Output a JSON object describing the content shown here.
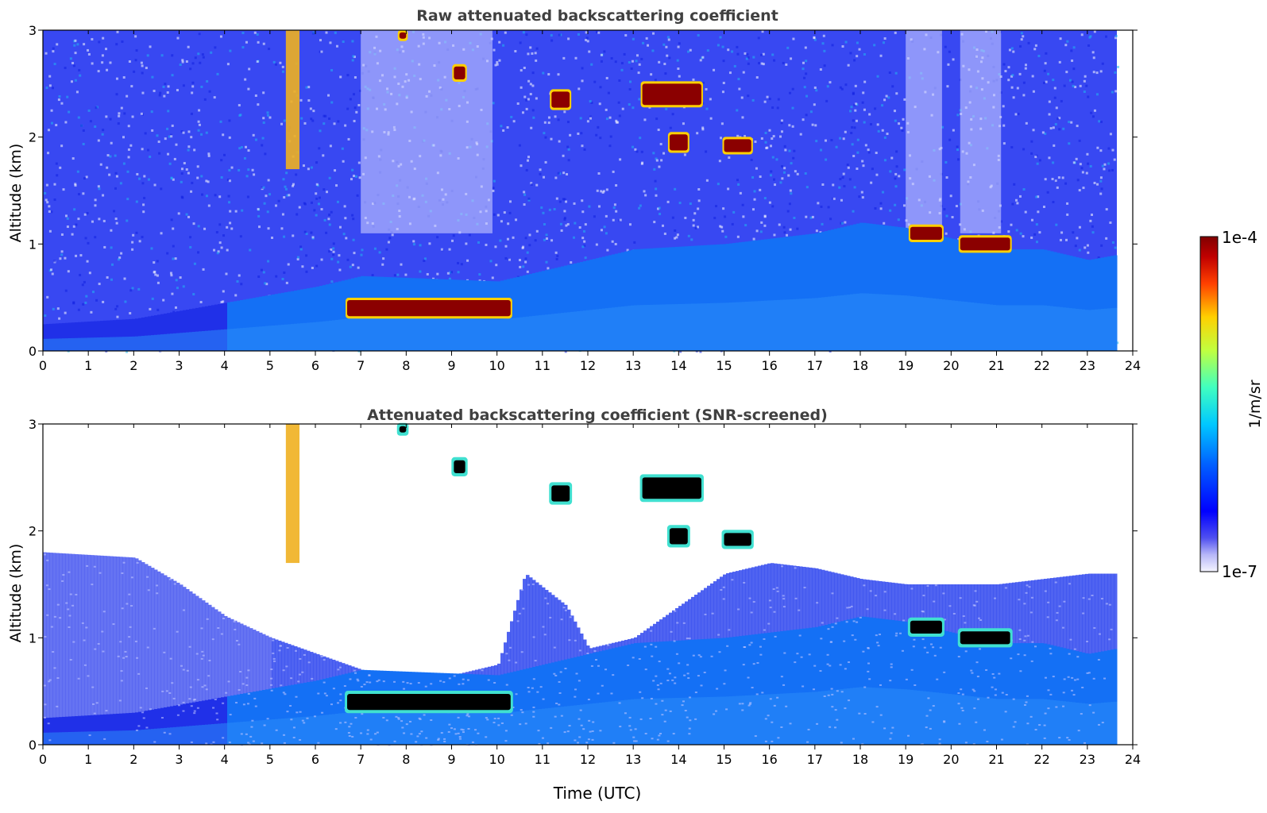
{
  "colors": {
    "background_white": "#ffffff",
    "noise_blue": "#2a3cf0",
    "boundary_layer_blue": "#1c6cf5",
    "cloud_dark_red": "#8b0000",
    "cloud_black": "#000000",
    "title_gray": "#404040"
  },
  "colorbar": {
    "label": "1/m/sr",
    "top_label": "1e-4",
    "bottom_label": "1e-7",
    "scale": "log",
    "range": [
      1e-07,
      0.0001
    ],
    "colormap": "jet (white at low end)"
  },
  "chart_data": [
    {
      "type": "heatmap",
      "title": "Raw attenuated backscattering coefficient",
      "xlabel": "",
      "ylabel": "Altitude (km)",
      "xlim": [
        0,
        24
      ],
      "ylim": [
        0,
        3
      ],
      "xticks": [
        "0",
        "1",
        "2",
        "3",
        "4",
        "5",
        "6",
        "7",
        "8",
        "9",
        "10",
        "11",
        "12",
        "13",
        "14",
        "15",
        "16",
        "17",
        "18",
        "19",
        "20",
        "21",
        "22",
        "23",
        "24"
      ],
      "yticks": [
        "0",
        "1",
        "2",
        "3"
      ],
      "data_end_time": 23.65,
      "boundary_layer_top": [
        [
          0,
          0.25
        ],
        [
          2,
          0.3
        ],
        [
          4,
          0.45
        ],
        [
          6,
          0.6
        ],
        [
          7,
          0.7
        ],
        [
          10,
          0.65
        ],
        [
          11,
          0.75
        ],
        [
          12,
          0.85
        ],
        [
          13,
          0.95
        ],
        [
          15,
          1.0
        ],
        [
          17,
          1.1
        ],
        [
          18,
          1.2
        ],
        [
          19,
          1.15
        ],
        [
          20,
          1.05
        ],
        [
          21,
          0.95
        ],
        [
          22,
          0.95
        ],
        [
          23,
          0.85
        ],
        [
          23.65,
          0.9
        ]
      ],
      "clouds": [
        {
          "t0": 6.7,
          "t1": 10.3,
          "alt": 0.4,
          "depth": 0.15
        },
        {
          "t0": 9.05,
          "t1": 9.3,
          "alt": 2.6,
          "depth": 0.12
        },
        {
          "t0": 11.2,
          "t1": 11.6,
          "alt": 2.35,
          "depth": 0.15
        },
        {
          "t0": 13.2,
          "t1": 14.5,
          "alt": 2.4,
          "depth": 0.2
        },
        {
          "t0": 13.8,
          "t1": 14.2,
          "alt": 1.95,
          "depth": 0.15
        },
        {
          "t0": 15.0,
          "t1": 15.6,
          "alt": 1.92,
          "depth": 0.12
        },
        {
          "t0": 19.1,
          "t1": 19.8,
          "alt": 1.1,
          "depth": 0.12
        },
        {
          "t0": 20.2,
          "t1": 21.3,
          "alt": 1.0,
          "depth": 0.12
        },
        {
          "t0": 7.85,
          "t1": 8.0,
          "alt": 2.95,
          "depth": 0.06
        }
      ],
      "plumes": [
        {
          "t0": 5.35,
          "t1": 5.65,
          "alt_bottom": 1.7,
          "alt_top": 3.0
        }
      ]
    },
    {
      "type": "heatmap",
      "title": "Attenuated backscattering coefficient (SNR-screened)",
      "xlabel": "Time (UTC)",
      "ylabel": "Altitude (km)",
      "xlim": [
        0,
        24
      ],
      "ylim": [
        0,
        3
      ],
      "xticks": [
        "0",
        "1",
        "2",
        "3",
        "4",
        "5",
        "6",
        "7",
        "8",
        "9",
        "10",
        "11",
        "12",
        "13",
        "14",
        "15",
        "16",
        "17",
        "18",
        "19",
        "20",
        "21",
        "22",
        "23",
        "24"
      ],
      "yticks": [
        "0",
        "1",
        "2",
        "3"
      ],
      "data_end_time": 23.65,
      "screened_top": [
        [
          0,
          1.8
        ],
        [
          2,
          1.75
        ],
        [
          3,
          1.5
        ],
        [
          4,
          1.2
        ],
        [
          5,
          1.0
        ],
        [
          6,
          0.85
        ],
        [
          7,
          0.7
        ],
        [
          8,
          0.6
        ],
        [
          9,
          0.65
        ],
        [
          10,
          0.75
        ],
        [
          10.6,
          1.6
        ],
        [
          11.5,
          1.3
        ],
        [
          12,
          0.9
        ],
        [
          13,
          1.0
        ],
        [
          14,
          1.3
        ],
        [
          15,
          1.6
        ],
        [
          16,
          1.7
        ],
        [
          17,
          1.65
        ],
        [
          18,
          1.55
        ],
        [
          19,
          1.5
        ],
        [
          20,
          1.5
        ],
        [
          21,
          1.5
        ],
        [
          22,
          1.55
        ],
        [
          23,
          1.6
        ],
        [
          23.65,
          1.6
        ]
      ]
    }
  ]
}
